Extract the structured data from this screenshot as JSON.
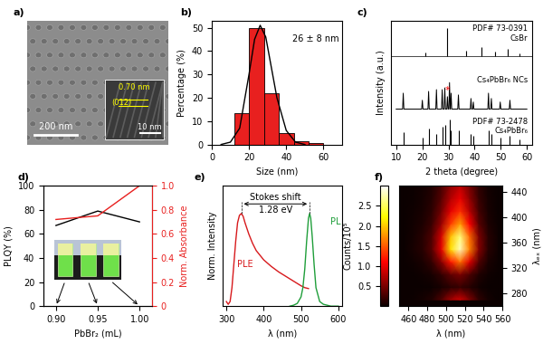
{
  "chart_data": [
    {
      "type": "image",
      "label": "a)",
      "scale_bar": "200 nm",
      "inset": {
        "scale_bar": "10 nm",
        "d_spacing": "0.70 nm",
        "plane": "(012)"
      }
    },
    {
      "type": "histogram",
      "label": "b)",
      "xlabel": "Size (nm)",
      "ylabel": "Percentage (%)",
      "bins": [
        12,
        20,
        28,
        36,
        44,
        52,
        60
      ],
      "counts": [
        13.5,
        50,
        22,
        5,
        1.5,
        0.5
      ],
      "color": "#e8201f",
      "fit": {
        "x": [
          5,
          10,
          15,
          20,
          23,
          26,
          29,
          32,
          35,
          40,
          45,
          50
        ],
        "values": [
          0,
          1,
          7,
          30,
          45,
          51,
          46,
          33,
          20,
          6,
          1,
          0
        ],
        "color": "#000000"
      },
      "annotation": "26 ± 8 nm",
      "xlim": [
        0,
        70
      ],
      "xticks": [
        0,
        20,
        40,
        60
      ],
      "ylim": [
        0,
        53
      ],
      "yticks": [
        0,
        10,
        20,
        30,
        40,
        50
      ]
    },
    {
      "type": "line",
      "label": "c)",
      "xlabel": "2 theta (degree)",
      "ylabel": "Intensity (a.u.)",
      "xlim": [
        8,
        62
      ],
      "xticks": [
        10,
        20,
        30,
        40,
        50,
        60
      ],
      "ylim": [
        0,
        3.5
      ],
      "tick_labels": "x",
      "series": [
        {
          "name": "Cs₄PbBr₆ NCs",
          "type": "line",
          "color": "#000000",
          "x": [
            10,
            12.45,
            12.7,
            12.95,
            19.75,
            20.0,
            20.25,
            22.15,
            22.4,
            22.65,
            25.15,
            25.4,
            25.65,
            27.35,
            27.6,
            27.85,
            28.35,
            28.6,
            28.85,
            29.35,
            29.6,
            29.85,
            30.15,
            30.4,
            30.65,
            30.75,
            31.0,
            31.25,
            33.55,
            33.8,
            34.05,
            38.35,
            38.6,
            38.85,
            39.25,
            39.5,
            39.75,
            45.05,
            45.3,
            45.55,
            46.15,
            46.4,
            46.65,
            49.55,
            49.8,
            50.05,
            53.25,
            53.5,
            53.75,
            60
          ],
          "values": [
            1.0,
            1.0,
            1.45,
            1.0,
            1.0,
            1.25,
            1.0,
            1.0,
            1.5,
            1.0,
            1.0,
            1.55,
            1.0,
            1.0,
            1.55,
            1.0,
            1.0,
            1.6,
            1.0,
            1.0,
            1.35,
            1.0,
            1.0,
            1.75,
            1.0,
            1.0,
            1.45,
            1.0,
            1.0,
            1.4,
            1.0,
            1.0,
            1.3,
            1.0,
            1.0,
            1.2,
            1.0,
            1.0,
            1.45,
            1.0,
            1.0,
            1.3,
            1.0,
            1.0,
            1.2,
            1.0,
            1.0,
            1.25,
            1.0,
            1.0
          ],
          "impurity": {
            "text": "*",
            "x": 29.6,
            "color": "#ff0000"
          }
        },
        {
          "name": "CsBr",
          "ref": "PDF# 73-0391",
          "type": "stick",
          "color": "#000000",
          "base": 2.5,
          "x": [
            21.0,
            29.6,
            36.6,
            42.5,
            47.8,
            52.6,
            57.2
          ],
          "values": [
            2.6,
            3.3,
            2.65,
            2.75,
            2.62,
            2.7,
            2.58
          ]
        },
        {
          "name": "Cs₄PbBr₆",
          "ref": "PDF# 73-2478",
          "type": "stick",
          "color": "#000000",
          "base": 0,
          "x": [
            12.9,
            20.1,
            22.4,
            25.4,
            27.6,
            28.6,
            30.4,
            31.0,
            33.8,
            38.6,
            39.4,
            45.3,
            46.3,
            49.8,
            53.5,
            57.0
          ],
          "values": [
            0.35,
            0.2,
            0.45,
            0.3,
            0.5,
            0.55,
            0.7,
            0.4,
            0.4,
            0.3,
            0.25,
            0.4,
            0.3,
            0.2,
            0.25,
            0.15
          ]
        }
      ]
    },
    {
      "type": "line",
      "label": "d)",
      "xlabel": "PbBr₂ (mL)",
      "ylabel": "PLQY (%)",
      "y2label": "Norm. Absorbance",
      "x": [
        0.9,
        0.95,
        1.0
      ],
      "xlim": [
        0.885,
        1.015
      ],
      "xticks": [
        {
          "value": 0.9,
          "label": "0.90"
        },
        {
          "value": 0.95,
          "label": "0.95"
        },
        {
          "value": 1.0,
          "label": "1.00"
        }
      ],
      "ylim": [
        0,
        100
      ],
      "yticks": [
        0,
        20,
        40,
        60,
        80,
        100
      ],
      "y2lim": [
        0,
        1
      ],
      "y2ticks": [
        0,
        0.2,
        0.4,
        0.6,
        0.8,
        {
          "value": 1,
          "label": "1.0"
        }
      ],
      "series": [
        {
          "name": "PLQY (%)",
          "color": "#000000",
          "values": [
            67,
            79,
            70
          ]
        },
        {
          "name": "Norm. Absorbance",
          "color": "#e8201f",
          "values": [
            0.72,
            0.75,
            1.0
          ],
          "axis": "y2"
        }
      ]
    },
    {
      "type": "line",
      "label": "e)",
      "xlabel": "λ (nm)",
      "ylabel": "Norm. Intensity",
      "xlim": [
        290,
        610
      ],
      "xticks": [
        300,
        400,
        500,
        600
      ],
      "ylim": [
        0,
        1.3
      ],
      "tick_labels": "x",
      "annotations": [
        "Stokes shift",
        "1.28 eV"
      ],
      "series": [
        {
          "name": "PLE",
          "color": "#d7191c",
          "x": [
            300,
            305,
            310,
            315,
            320,
            325,
            330,
            335,
            340,
            345,
            350,
            360,
            370,
            380,
            400,
            420,
            440,
            460,
            480,
            500,
            510,
            520
          ],
          "values": [
            0.05,
            0.02,
            0.05,
            0.2,
            0.45,
            0.7,
            0.9,
            0.98,
            1.0,
            0.97,
            0.9,
            0.78,
            0.68,
            0.6,
            0.5,
            0.43,
            0.37,
            0.32,
            0.27,
            0.22,
            0.2,
            0.19
          ]
        },
        {
          "name": "PL",
          "color": "#1f9e3a",
          "x": [
            470,
            480,
            490,
            500,
            505,
            510,
            515,
            520,
            523,
            526,
            530,
            535,
            540,
            550,
            560,
            580,
            600
          ],
          "values": [
            0,
            0.01,
            0.03,
            0.1,
            0.2,
            0.4,
            0.7,
            0.95,
            1.0,
            0.95,
            0.75,
            0.45,
            0.2,
            0.05,
            0.02,
            0,
            0
          ]
        }
      ]
    },
    {
      "type": "heatmap",
      "label": "f)",
      "xlabel": "λ (nm)",
      "ylabel": "λₑₓ (nm)",
      "x": [
        455,
        465,
        475,
        485,
        495,
        505,
        515,
        525,
        535,
        545,
        555
      ],
      "y": [
        270,
        290,
        310,
        330,
        350,
        370,
        390,
        410,
        430,
        450
      ],
      "cells": [
        [
          0,
          0.02,
          0.05,
          0.11,
          0.32,
          0.68,
          0.9,
          0.54,
          0.18,
          0.05,
          0.01
        ],
        [
          0,
          0,
          0.01,
          0.02,
          0.07,
          0.15,
          0.2,
          0.12,
          0.04,
          0.01,
          0
        ],
        [
          0,
          0.01,
          0.03,
          0.06,
          0.18,
          0.38,
          0.5,
          0.3,
          0.1,
          0.03,
          0.01
        ],
        [
          0,
          0.03,
          0.08,
          0.19,
          0.56,
          1.2,
          1.6,
          0.96,
          0.32,
          0.08,
          0.02
        ],
        [
          0,
          0.06,
          0.14,
          0.34,
          0.98,
          2.1,
          2.8,
          1.68,
          0.56,
          0.14,
          0.03
        ],
        [
          0,
          0.05,
          0.13,
          0.31,
          0.91,
          1.95,
          2.6,
          1.56,
          0.52,
          0.13,
          0.03
        ],
        [
          0,
          0.04,
          0.09,
          0.22,
          0.63,
          1.35,
          1.8,
          1.08,
          0.36,
          0.09,
          0.02
        ],
        [
          0,
          0.03,
          0.07,
          0.16,
          0.46,
          0.98,
          1.3,
          0.78,
          0.26,
          0.07,
          0.01
        ],
        [
          0,
          0.02,
          0.05,
          0.12,
          0.35,
          0.75,
          1.0,
          0.6,
          0.2,
          0.05,
          0.01
        ],
        [
          0,
          0.02,
          0.04,
          0.1,
          0.28,
          0.6,
          0.8,
          0.48,
          0.16,
          0.04,
          0.01
        ]
      ],
      "xlim": [
        450,
        560
      ],
      "xticks": [
        460,
        480,
        500,
        520,
        540,
        560
      ],
      "ylim": [
        260,
        450
      ],
      "yticks": [
        280,
        320,
        360,
        400,
        440
      ],
      "colorbar": {
        "label": "Counts/10⁵",
        "range": [
          0,
          3
        ],
        "ticks": [
          0.5,
          {
            "value": 1,
            "label": "1.0"
          },
          1.5,
          {
            "value": 2,
            "label": "2.0"
          },
          2.5
        ]
      }
    }
  ]
}
